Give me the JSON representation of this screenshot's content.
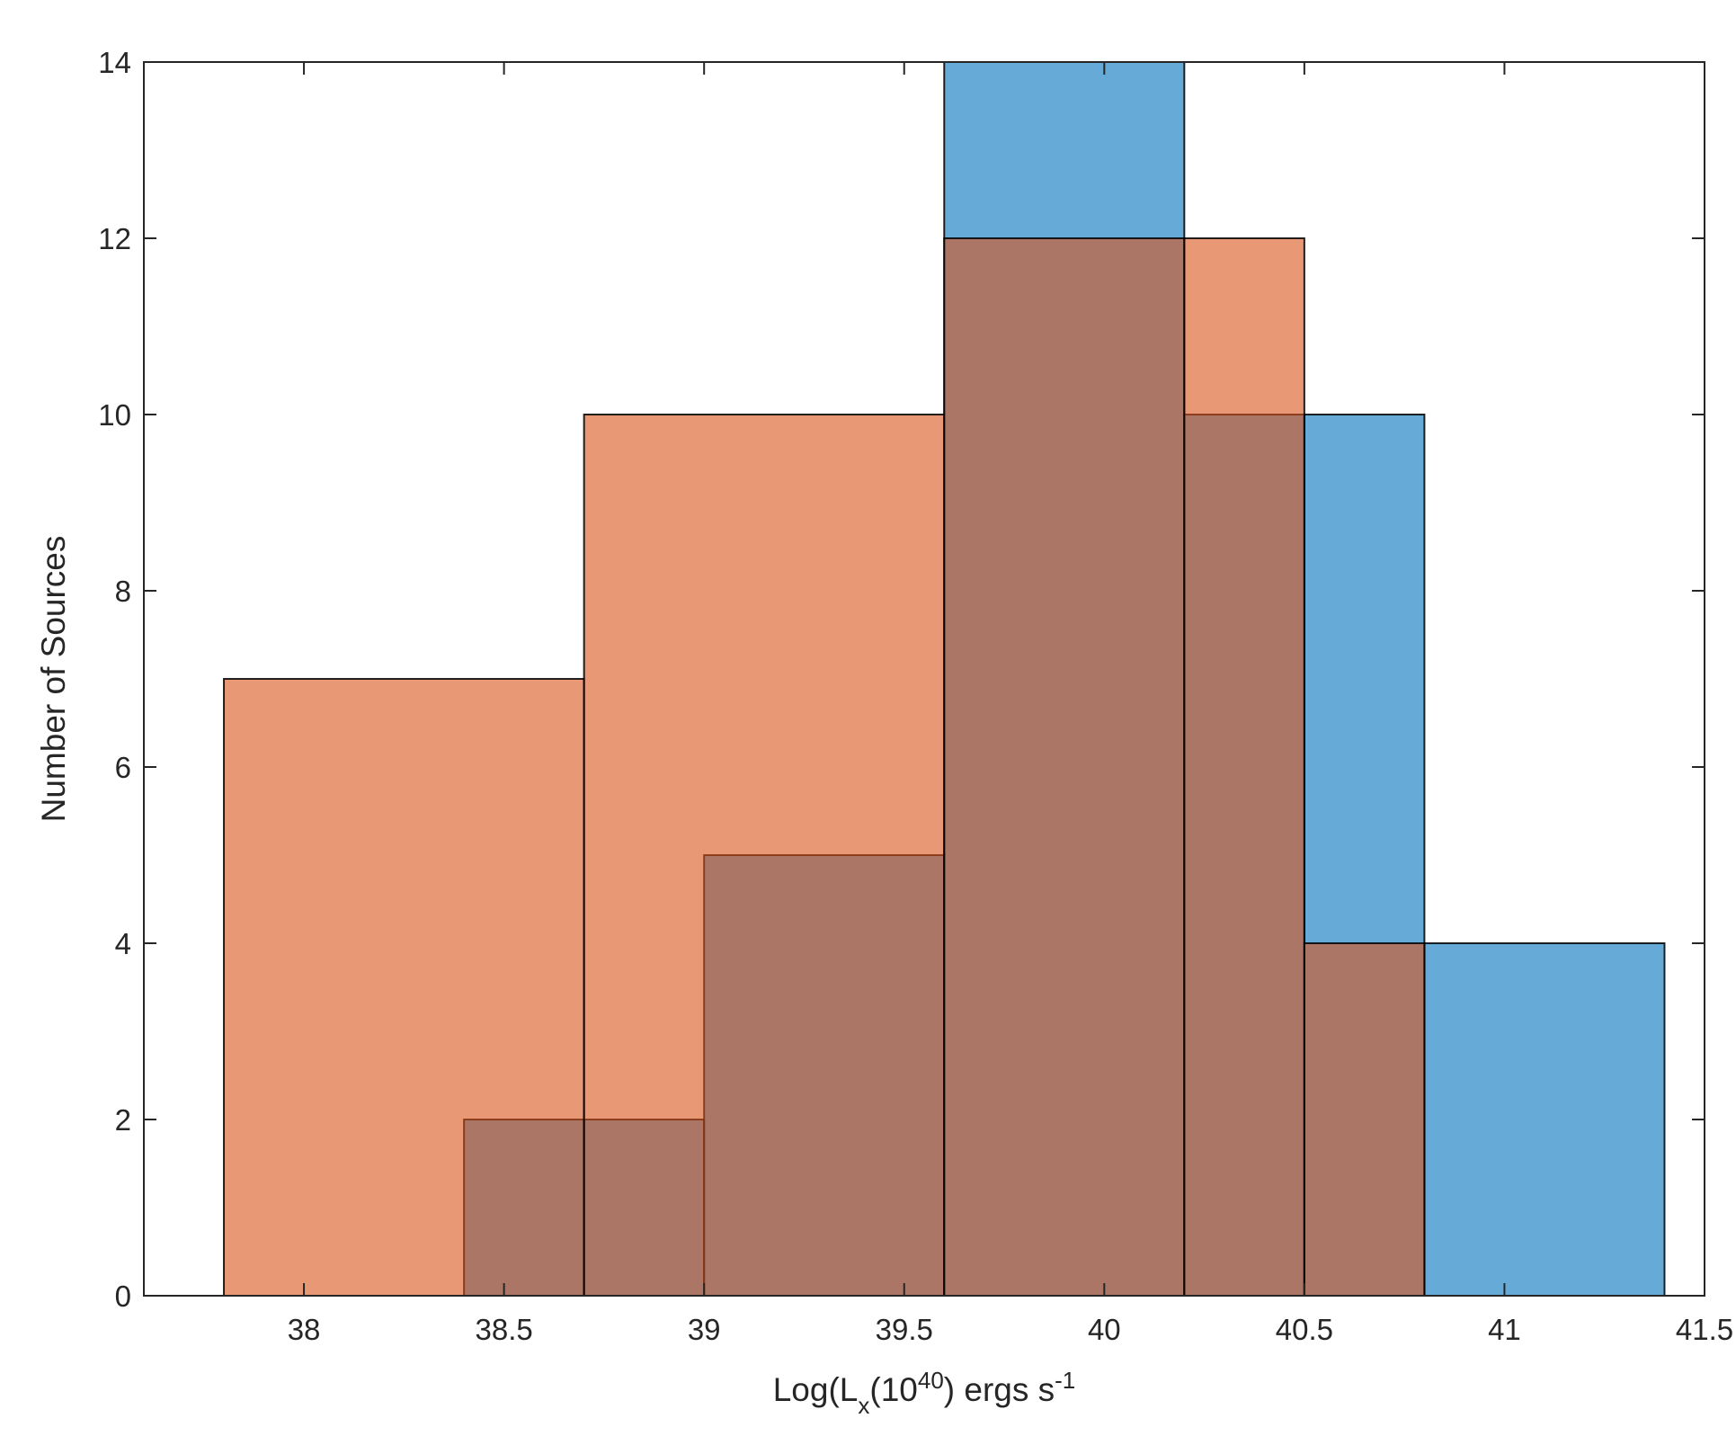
{
  "chart_data": {
    "type": "bar",
    "variant": "overlapping histogram",
    "xlabel": {
      "base": "Log(L",
      "sub": "x",
      "mid": "(10",
      "sup": "40",
      "after": ") ergs s",
      "sup2": "-1"
    },
    "ylabel": "Number of Sources",
    "xlim": [
      37.6,
      41.5
    ],
    "ylim": [
      0,
      14
    ],
    "xticks": [
      38,
      38.5,
      39,
      39.5,
      40,
      40.5,
      41,
      41.5
    ],
    "xtick_labels": [
      "38",
      "38.5",
      "39",
      "39.5",
      "40",
      "40.5",
      "41",
      "41.5"
    ],
    "yticks": [
      0,
      2,
      4,
      6,
      8,
      10,
      12,
      14
    ],
    "ytick_labels": [
      "0",
      "2",
      "4",
      "6",
      "8",
      "10",
      "12",
      "14"
    ],
    "grid": false,
    "series": [
      {
        "color": "#0072BD",
        "face_alpha": 0.6,
        "edges": [
          38.4,
          38.7,
          39.0,
          39.6,
          40.2,
          40.5,
          40.8,
          41.4
        ],
        "counts": [
          2,
          2,
          5,
          14,
          10,
          10,
          4
        ]
      },
      {
        "color": "#D95319",
        "face_alpha": 0.6,
        "edges": [
          37.8,
          38.7,
          39.6,
          40.2,
          40.5,
          40.8
        ],
        "counts": [
          7,
          10,
          12,
          12,
          4
        ]
      }
    ]
  }
}
